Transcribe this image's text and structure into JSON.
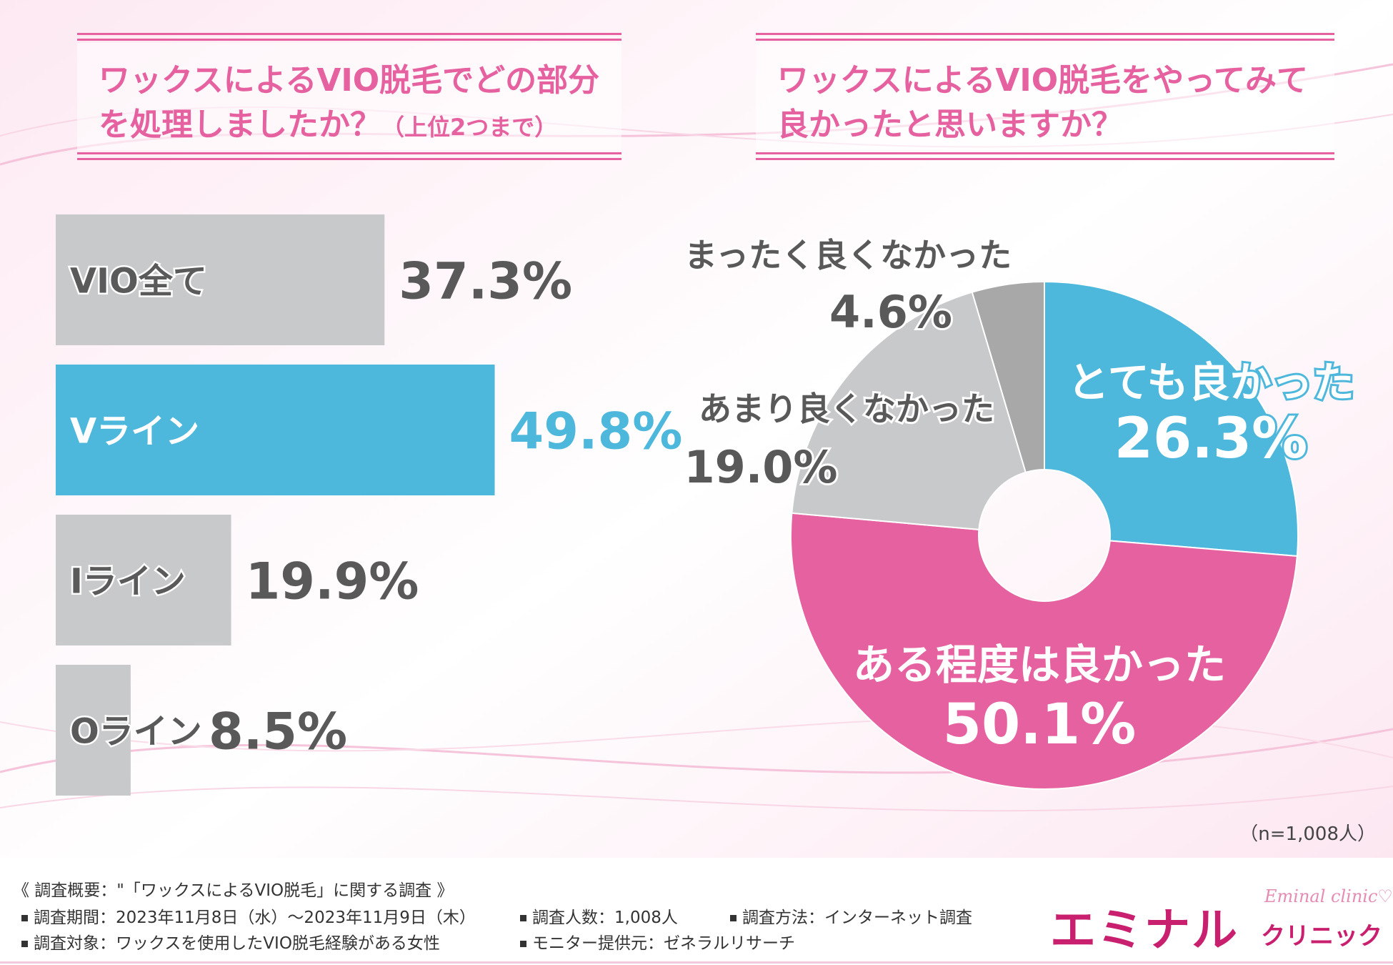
{
  "colors": {
    "pink": "#e6619f",
    "blue": "#4eb7dc",
    "gray": "#c8c9ca",
    "dark_gray": "#a8a8a8",
    "text_gray": "#595959",
    "logo": "#c8206f"
  },
  "left_title": {
    "line1": "ワックスによるVIO脱毛でどの部分",
    "line2": "を処理しましたか？",
    "line2_sub": "（上位2つまで）"
  },
  "right_title": {
    "line1": "ワックスによるVIO脱毛をやってみて",
    "line2": "良かったと思いますか？"
  },
  "chart_data": [
    {
      "type": "bar",
      "orientation": "horizontal",
      "categories": [
        "VIO全て",
        "Vライン",
        "Iライン",
        "Oライン"
      ],
      "values": [
        37.3,
        49.8,
        19.9,
        8.5
      ],
      "value_labels": [
        "37.3%",
        "49.8%",
        "19.9%",
        "8.5%"
      ],
      "highlight_index": 1,
      "unit": "%",
      "grid": false
    },
    {
      "type": "pie",
      "donut": true,
      "start": "12 o'clock",
      "direction": "clockwise",
      "categories": [
        "とても良かった",
        "ある程度は良かった",
        "あまり良くなかった",
        "まったく良くなかった"
      ],
      "values": [
        26.3,
        50.1,
        19.0,
        4.6
      ],
      "value_labels": [
        "26.3%",
        "50.1%",
        "19.0%",
        "4.6%"
      ],
      "colors": [
        "#4eb7dc",
        "#e6619f",
        "#c8c9ca",
        "#a8a8a8"
      ],
      "label_position": [
        "inside",
        "inside",
        "outside-upper-left",
        "outside-top"
      ]
    }
  ],
  "sample_note": "（n=1,008人）",
  "footer": {
    "heading": "《 調査概要：\"「ワックスによるVIO脱毛」に関する調査 》",
    "period": "調査期間：2023年11月8日（水）～2023年11月9日（木）",
    "respondents": "調査人数：1,008人",
    "method": "調査方法：インターネット調査",
    "target": "調査対象：ワックスを使用したVIO脱毛経験がある女性",
    "provider": "モニター提供元：ゼネラルリサーチ"
  },
  "logo": {
    "main": "エミナル",
    "sub": "クリニック",
    "script": "Eminal clinic♡"
  }
}
